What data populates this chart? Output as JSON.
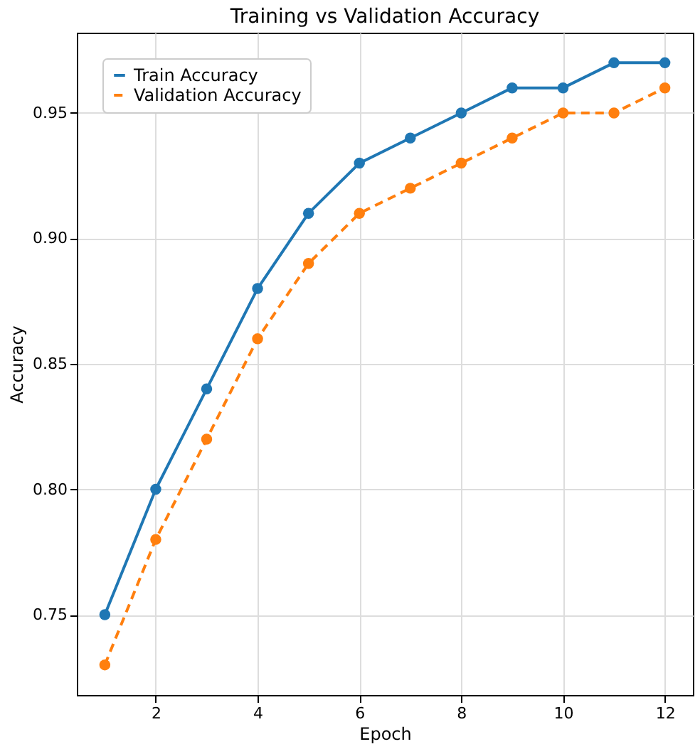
{
  "chart_data": {
    "type": "line",
    "title": "Training vs Validation Accuracy",
    "xlabel": "Epoch",
    "ylabel": "Accuracy",
    "x": [
      1,
      2,
      3,
      4,
      5,
      6,
      7,
      8,
      9,
      10,
      11,
      12
    ],
    "series": [
      {
        "name": "Train Accuracy",
        "color": "#1f77b4",
        "line_style": "solid",
        "values": [
          0.75,
          0.8,
          0.84,
          0.88,
          0.91,
          0.93,
          0.94,
          0.95,
          0.96,
          0.96,
          0.97,
          0.97
        ]
      },
      {
        "name": "Validation Accuracy",
        "color": "#ff7f0e",
        "line_style": "dashed",
        "values": [
          0.73,
          0.78,
          0.82,
          0.86,
          0.89,
          0.91,
          0.92,
          0.93,
          0.94,
          0.95,
          0.95,
          0.96
        ]
      }
    ],
    "xlim": [
      0.45,
      12.55
    ],
    "xticks": [
      2,
      4,
      6,
      8,
      10,
      12
    ],
    "ylim": [
      0.718,
      0.982
    ],
    "yticks": [
      0.75,
      {
        "value": 0.8,
        "label": "0.80"
      },
      0.85,
      {
        "value": 0.9,
        "label": "0.90"
      },
      0.95
    ],
    "grid": true,
    "legend": "top left",
    "marker": "circle"
  }
}
